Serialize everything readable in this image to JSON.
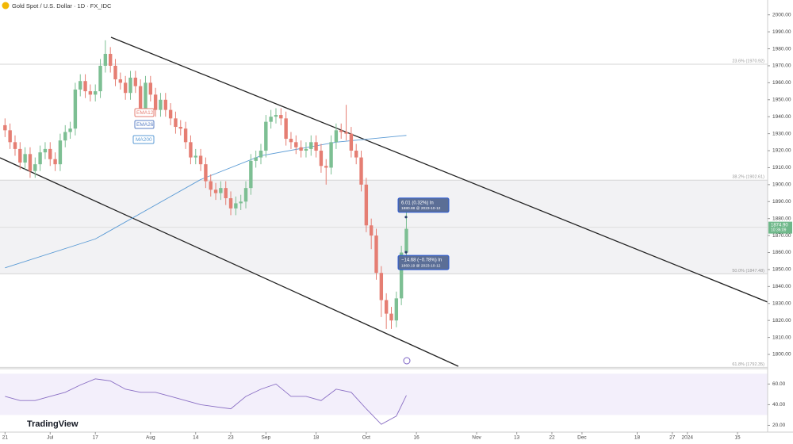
{
  "chart_data": {
    "type": "candlestick",
    "title": "Gold Spot / U.S. Dollar · 1D · FX_IDC",
    "open": [
      1935,
      1932,
      1925,
      1921,
      1913,
      1918,
      1908,
      1912,
      1919,
      1921,
      1915,
      1912,
      1926,
      1931,
      1933,
      1956,
      1961,
      1955,
      1953,
      1955,
      1970,
      1977,
      1970,
      1962,
      1960,
      1954,
      1963,
      1958,
      1945,
      1960,
      1953,
      1944,
      1950,
      1944,
      1939,
      1934,
      1933,
      1925,
      1916,
      1917,
      1912,
      1902,
      1897,
      1895,
      1898,
      1892,
      1886,
      1889,
      1890,
      1898,
      1914,
      1916,
      1920,
      1937,
      1940,
      1941,
      1939,
      1927,
      1925,
      1922,
      1920,
      1921,
      1925,
      1920,
      1911,
      1910,
      1925,
      1932,
      1931,
      1930,
      1920,
      1916,
      1900,
      1876,
      1870,
      1848,
      1832,
      1824,
      1820,
      1833,
      1860
    ],
    "high": [
      1939,
      1936,
      1929,
      1925,
      1922,
      1922,
      1916,
      1923,
      1925,
      1925,
      1919,
      1930,
      1935,
      1937,
      1960,
      1965,
      1965,
      1959,
      1959,
      1974,
      1985,
      1981,
      1974,
      1966,
      1964,
      1967,
      1967,
      1962,
      1964,
      1964,
      1957,
      1954,
      1954,
      1948,
      1943,
      1938,
      1937,
      1929,
      1921,
      1921,
      1916,
      1906,
      1901,
      1902,
      1902,
      1896,
      1893,
      1894,
      1902,
      1918,
      1920,
      1924,
      1941,
      1944,
      1945,
      1945,
      1943,
      1931,
      1929,
      1926,
      1925,
      1929,
      1929,
      1924,
      1915,
      1929,
      1936,
      1936,
      1947,
      1934,
      1924,
      1920,
      1904,
      1880,
      1874,
      1852,
      1836,
      1828,
      1837,
      1864,
      1884
    ],
    "low": [
      1928,
      1921,
      1917,
      1909,
      1909,
      1904,
      1904,
      1908,
      1915,
      1911,
      1908,
      1908,
      1922,
      1927,
      1929,
      1952,
      1951,
      1949,
      1949,
      1951,
      1966,
      1966,
      1958,
      1956,
      1950,
      1950,
      1954,
      1941,
      1941,
      1949,
      1940,
      1940,
      1940,
      1935,
      1930,
      1929,
      1921,
      1912,
      1912,
      1908,
      1898,
      1893,
      1891,
      1891,
      1888,
      1882,
      1882,
      1885,
      1886,
      1894,
      1910,
      1912,
      1916,
      1933,
      1936,
      1935,
      1923,
      1921,
      1918,
      1916,
      1916,
      1917,
      1916,
      1907,
      1900,
      1906,
      1921,
      1927,
      1926,
      1916,
      1912,
      1896,
      1872,
      1862,
      1844,
      1822,
      1815,
      1815,
      1816,
      1829,
      1857
    ],
    "close": [
      1932,
      1925,
      1921,
      1913,
      1918,
      1908,
      1912,
      1919,
      1921,
      1915,
      1912,
      1926,
      1931,
      1933,
      1956,
      1961,
      1955,
      1953,
      1955,
      1970,
      1977,
      1970,
      1962,
      1960,
      1954,
      1963,
      1958,
      1945,
      1960,
      1953,
      1944,
      1950,
      1944,
      1939,
      1934,
      1933,
      1925,
      1916,
      1917,
      1912,
      1902,
      1897,
      1895,
      1898,
      1892,
      1886,
      1889,
      1890,
      1898,
      1914,
      1916,
      1920,
      1937,
      1940,
      1941,
      1939,
      1927,
      1925,
      1922,
      1920,
      1921,
      1925,
      1920,
      1911,
      1910,
      1925,
      1932,
      1931,
      1930,
      1920,
      1916,
      1900,
      1876,
      1870,
      1848,
      1832,
      1824,
      1820,
      1833,
      1860,
      1874
    ],
    "up_color": "#7dbf93",
    "down_color": "#e57e73",
    "xlim": [
      -1,
      152
    ],
    "xticks": [
      {
        "value": 0,
        "label": "21"
      },
      {
        "value": 9,
        "label": "Jul"
      },
      {
        "value": 18,
        "label": "17"
      },
      {
        "value": 29,
        "label": "Aug"
      },
      {
        "value": 38,
        "label": "14"
      },
      {
        "value": 45,
        "label": "23"
      },
      {
        "value": 52,
        "label": "Sep"
      },
      {
        "value": 62,
        "label": "18"
      },
      {
        "value": 72,
        "label": "Oct"
      },
      {
        "value": 82,
        "label": "16"
      },
      {
        "value": 94,
        "label": "Nov"
      },
      {
        "value": 102,
        "label": "13"
      },
      {
        "value": 109,
        "label": "22"
      },
      {
        "value": 115,
        "label": "Dec"
      },
      {
        "value": 126,
        "label": "18"
      },
      {
        "value": 133,
        "label": "27"
      },
      {
        "value": 136,
        "label": "2024"
      },
      {
        "value": 146,
        "label": "15"
      }
    ],
    "ylim": [
      1793,
      2005
    ],
    "yticks": [
      {
        "value": 1800,
        "label": "1800.00"
      },
      {
        "value": 1810,
        "label": "1810.00"
      },
      {
        "value": 1820,
        "label": "1820.00"
      },
      {
        "value": 1830,
        "label": "1830.00"
      },
      {
        "value": 1840,
        "label": "1840.00"
      },
      {
        "value": 1850,
        "label": "1850.00"
      },
      {
        "value": 1860,
        "label": "1860.00"
      },
      {
        "value": 1870,
        "label": "1870.00"
      },
      {
        "value": 1880,
        "label": "1880.00"
      },
      {
        "value": 1890,
        "label": "1890.00"
      },
      {
        "value": 1900,
        "label": "1900.00"
      },
      {
        "value": 1910,
        "label": "1910.00"
      },
      {
        "value": 1920,
        "label": "1920.00"
      },
      {
        "value": 1930,
        "label": "1930.00"
      },
      {
        "value": 1940,
        "label": "1940.00"
      },
      {
        "value": 1950,
        "label": "1950.00"
      },
      {
        "value": 1960,
        "label": "1960.00"
      },
      {
        "value": 1970,
        "label": "1970.00"
      },
      {
        "value": 1980,
        "label": "1980.00"
      },
      {
        "value": 1990,
        "label": "1990.00"
      },
      {
        "value": 2000,
        "label": "2000.00"
      }
    ],
    "ma200": {
      "name": "MA200",
      "color": "#5b9bd5",
      "x": [
        0,
        18,
        39,
        51,
        66,
        80
      ],
      "values": [
        1851,
        1868,
        1903,
        1917,
        1925,
        1929
      ]
    },
    "indicator_labels": [
      {
        "name": "EMA12",
        "color": "#e57e73"
      },
      {
        "name": "EMA26",
        "color": "#5b7fc4"
      }
    ],
    "fib_levels": [
      {
        "value": 1970.92,
        "label": "23.6% (1970.92)"
      },
      {
        "value": 1902.61,
        "label": "38.2% (1902.61)"
      },
      {
        "value": 1847.48,
        "label": "50.0% (1847.48)"
      },
      {
        "value": 1792.35,
        "label": "61.8% (1792.35)"
      }
    ],
    "last_price": {
      "value": 1874.9,
      "label": "1874.90",
      "time": "10:36:09"
    },
    "annotations": [
      {
        "value": 1880.88,
        "text": "6.01 (0.32%) ln",
        "subtext": "1880.88 @ 2023-10-12"
      },
      {
        "value": 1860.19,
        "text": "−14.68 (−0.78%) ln",
        "subtext": "1860.19 @ 2023-10-12"
      }
    ],
    "rsi": {
      "color": "#8a6fc4",
      "ylim": [
        15,
        71
      ],
      "yticks": [
        {
          "value": 60,
          "label": "60.00"
        },
        {
          "value": 40,
          "label": "40.00"
        },
        {
          "value": 20,
          "label": "20.00"
        }
      ],
      "x": [
        0,
        3,
        6,
        9,
        12,
        15,
        18,
        21,
        24,
        27,
        30,
        33,
        36,
        39,
        42,
        45,
        48,
        51,
        54,
        57,
        60,
        63,
        66,
        69,
        72,
        75,
        78,
        80
      ],
      "values": [
        48,
        44,
        44,
        48,
        52,
        59,
        65,
        63,
        55,
        52,
        52,
        48,
        44,
        40,
        38,
        36,
        48,
        55,
        60,
        48,
        48,
        44,
        55,
        52,
        36,
        21,
        29,
        49
      ]
    },
    "brand": "TradingView"
  }
}
